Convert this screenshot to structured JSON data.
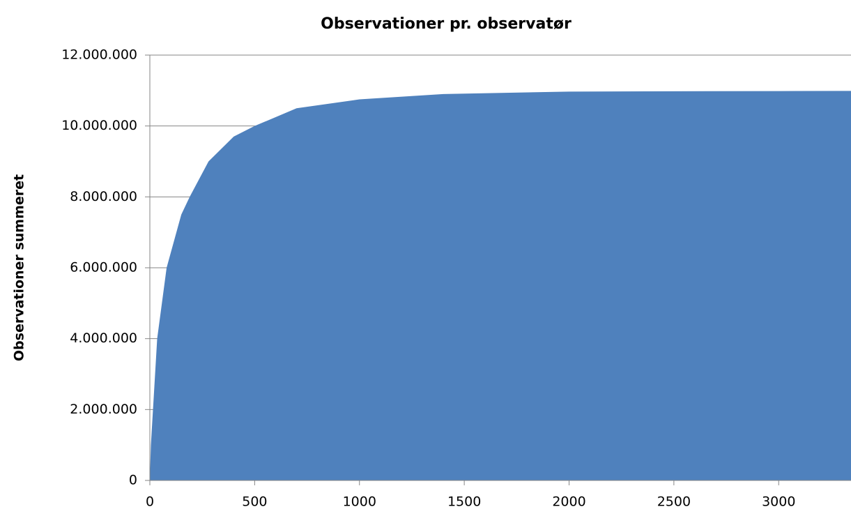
{
  "chart_data": {
    "type": "area",
    "title": "Observationer pr. observatør",
    "y_label": "Observationer summeret",
    "color": "#4f81bd",
    "grid": true,
    "x": [
      0,
      5,
      15,
      35,
      80,
      150,
      190,
      280,
      400,
      500,
      700,
      1000,
      1400,
      2000,
      2500,
      3000,
      3345
    ],
    "values": [
      0,
      1000000,
      2000000,
      4000000,
      6000000,
      7500000,
      8000000,
      9000000,
      9700000,
      10000000,
      10500000,
      10750000,
      10900000,
      10970000,
      10980000,
      10985000,
      10990000
    ],
    "xlim": [
      0,
      3345
    ],
    "xticks": [
      0,
      500,
      1000,
      1500,
      2000,
      2500,
      3000
    ],
    "ylim": [
      0,
      12000000
    ],
    "yticks": [
      0,
      {
        "value": 2000000,
        "label": "2.000.000"
      },
      {
        "value": 4000000,
        "label": "4.000.000"
      },
      {
        "value": 6000000,
        "label": "6.000.000"
      },
      {
        "value": 8000000,
        "label": "8.000.000"
      },
      {
        "value": 10000000,
        "label": "10.000.000"
      },
      {
        "value": 12000000,
        "label": "12.000.000"
      }
    ]
  }
}
